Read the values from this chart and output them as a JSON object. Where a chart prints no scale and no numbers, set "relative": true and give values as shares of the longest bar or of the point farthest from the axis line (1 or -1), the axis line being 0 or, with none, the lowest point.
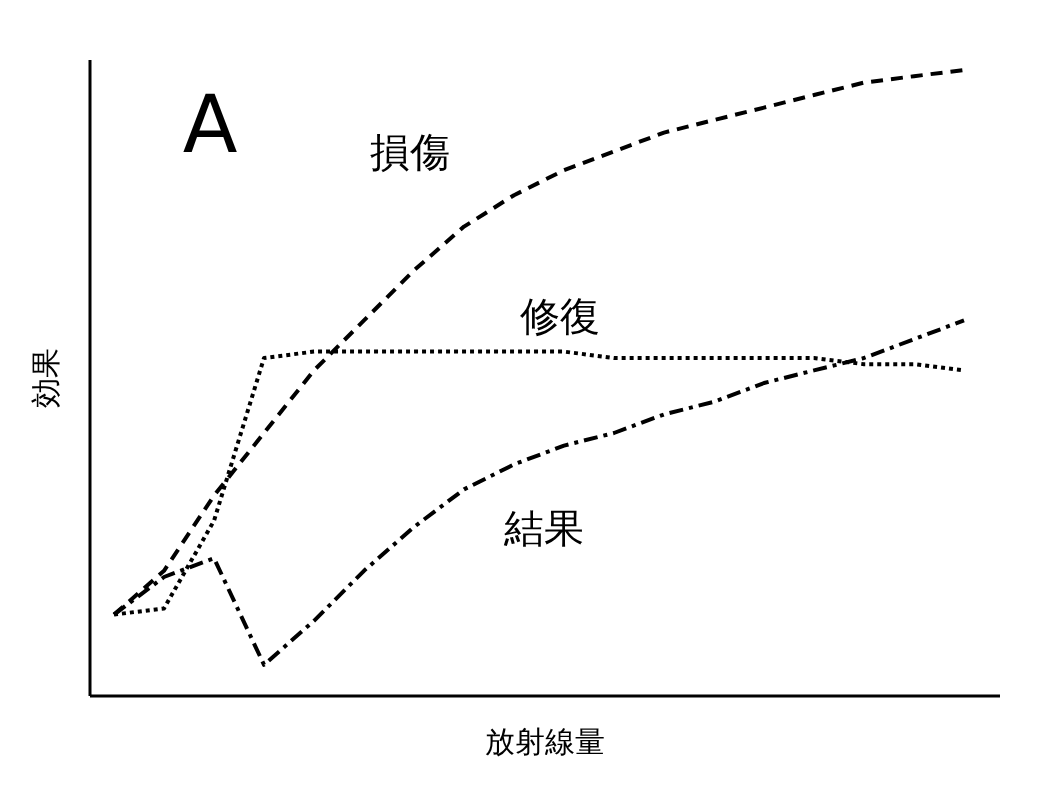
{
  "chart_data": {
    "type": "line",
    "relative": true,
    "xlabel": "放射線量",
    "ylabel": "効果",
    "annotations": [
      "A"
    ],
    "categories": [
      null,
      null,
      null,
      null,
      null,
      null,
      null,
      null,
      null,
      null,
      null,
      null,
      null,
      null,
      null,
      null,
      null,
      null
    ],
    "series": [
      {
        "name": "損傷",
        "color": "#000000",
        "line_style": "dashed",
        "values": [
          0.13,
          0.2,
          0.32,
          0.42,
          0.52,
          0.6,
          0.68,
          0.75,
          0.8,
          0.84,
          0.87,
          0.9,
          0.92,
          0.94,
          0.96,
          0.98,
          0.99,
          1
        ]
      },
      {
        "name": "修復",
        "color": "#000000",
        "line_style": "dotted",
        "values": [
          0.13,
          0.14,
          0.28,
          0.54,
          0.55,
          0.55,
          0.55,
          0.55,
          0.55,
          0.55,
          0.54,
          0.54,
          0.54,
          0.54,
          0.54,
          0.53,
          0.53,
          0.52
        ]
      },
      {
        "name": "結果",
        "color": "#000000",
        "line_style": "dashdot",
        "values": [
          0.13,
          0.19,
          0.22,
          0.05,
          0.12,
          0.2,
          0.27,
          0.33,
          0.37,
          0.4,
          0.42,
          0.45,
          0.47,
          0.5,
          0.52,
          0.54,
          0.57,
          0.6
        ]
      }
    ]
  }
}
